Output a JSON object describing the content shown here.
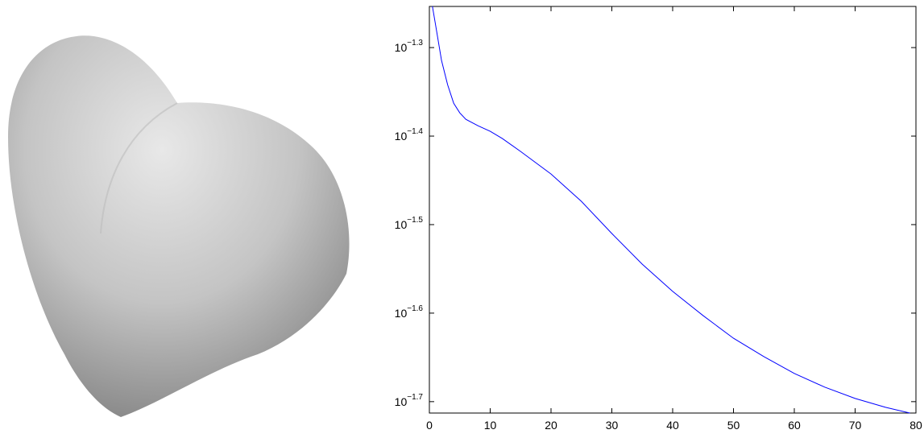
{
  "chart_data": {
    "type": "line",
    "x": [
      0.5,
      1,
      2,
      3,
      4,
      5,
      6,
      8,
      10,
      12,
      15,
      20,
      25,
      30,
      35,
      40,
      45,
      50,
      55,
      60,
      65,
      70,
      75,
      79
    ],
    "series": [
      {
        "color": "#0000ff",
        "values": [
          0.0558,
          0.05326,
          0.04846,
          0.0455,
          0.04336,
          0.04229,
          0.04159,
          0.0409,
          0.04031,
          0.03956,
          0.03825,
          0.03607,
          0.03359,
          0.0309,
          0.02853,
          0.02658,
          0.02496,
          0.02353,
          0.02243,
          0.02147,
          0.02072,
          0.02012,
          0.01966,
          0.01937
        ]
      }
    ],
    "xlim": [
      0,
      80
    ],
    "xticks": [
      0,
      10,
      20,
      30,
      40,
      50,
      60,
      70,
      80
    ],
    "ylim": [
      0.01937,
      0.05578
    ],
    "yscale": "log",
    "yticks": [
      {
        "value": 0.050119,
        "label": "10",
        "exponent": "−1.3"
      },
      {
        "value": 0.039811,
        "label": "10",
        "exponent": "−1.4"
      },
      {
        "value": 0.031623,
        "label": "10",
        "exponent": "−1.5"
      },
      {
        "value": 0.025119,
        "label": "10",
        "exponent": "−1.6"
      },
      {
        "value": 0.019953,
        "label": "10",
        "exponent": "−1.7"
      }
    ],
    "grid": false
  }
}
